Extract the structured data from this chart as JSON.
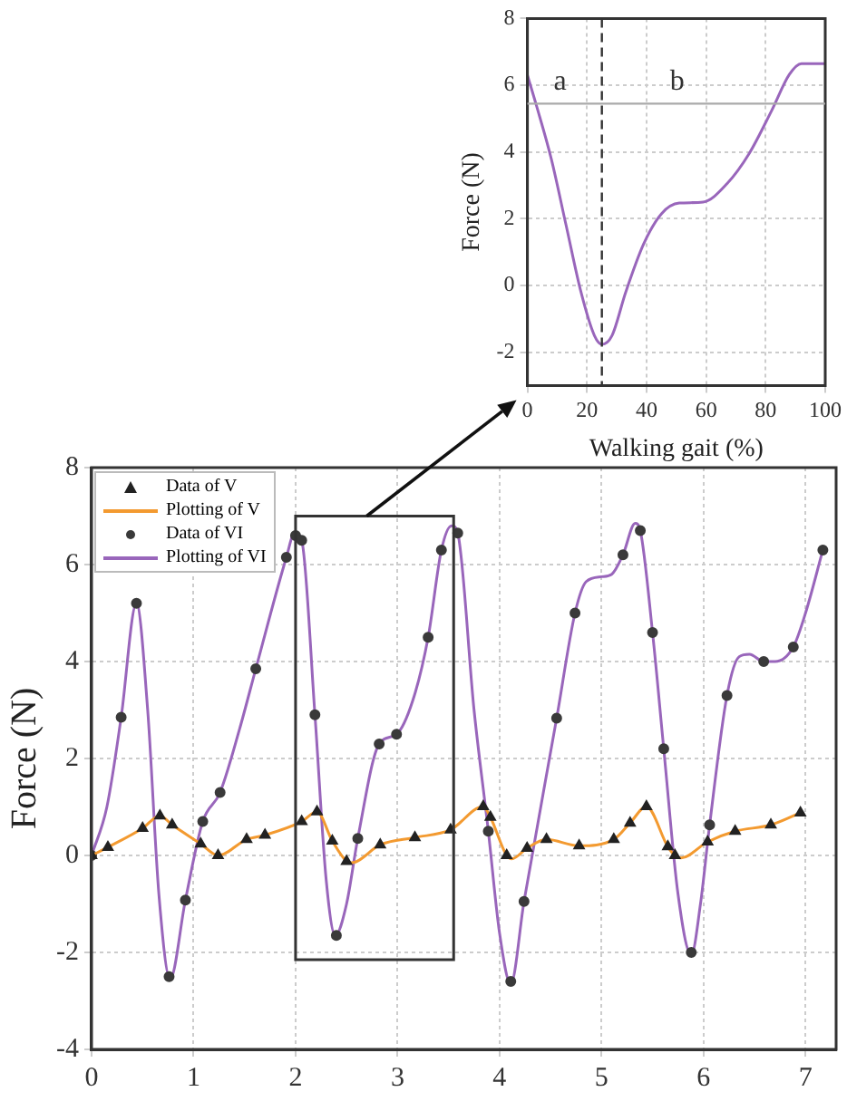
{
  "chart_data": [
    {
      "type": "line",
      "xlabel": "Walking gait (%)",
      "ylabel": "Force (N)",
      "xlim": [
        0,
        100
      ],
      "xticks": [
        0,
        20,
        40,
        60,
        80,
        100
      ],
      "ylim": [
        -3,
        8
      ],
      "yticks": [
        -2,
        0,
        2,
        4,
        6,
        8
      ],
      "grid": true,
      "legend": false,
      "marker": "none",
      "line_style": "solid",
      "x": [
        0,
        3,
        8,
        13,
        18,
        22.5,
        25,
        28.4,
        33,
        39,
        45,
        51,
        59,
        67,
        74.5,
        82,
        88,
        92,
        98,
        100
      ],
      "series": [
        {
          "color": "#9966bb",
          "values": [
            6.3,
            5.4,
            3.8,
            1.8,
            -0.2,
            -1.5,
            -1.76,
            -1.5,
            -0.2,
            1.24,
            2.15,
            2.47,
            2.5,
            3.05,
            3.96,
            5.24,
            6.33,
            6.65,
            6.65,
            6.65
          ]
        }
      ],
      "ref_lines": [
        {
          "axis": "x",
          "value": 25,
          "line_style": "dashed",
          "color": "#333333"
        },
        {
          "axis": "y",
          "value": 5.45,
          "line_style": "solid",
          "color": "#aaaaaa"
        }
      ],
      "annotations": [
        "a",
        "b"
      ]
    },
    {
      "type": "line",
      "ylabel": "Force (N)",
      "xlim": [
        0,
        7.3
      ],
      "xticks": [
        0,
        1,
        2,
        3,
        4,
        5,
        6,
        7
      ],
      "ylim": [
        -4,
        8
      ],
      "yticks": [
        -4,
        -2,
        0,
        2,
        4,
        6,
        8
      ],
      "grid": true,
      "legend": "top left",
      "series": [
        {
          "name": "Data of V",
          "type": "scatter",
          "marker": "triangle",
          "color": "#222222",
          "x": [
            0,
            0.16,
            0.5,
            0.67,
            0.79,
            1.07,
            1.24,
            1.52,
            1.7,
            2.06,
            2.21,
            2.36,
            2.5,
            2.83,
            3.17,
            3.52,
            3.84,
            3.91,
            4.07,
            4.27,
            4.46,
            4.78,
            5.12,
            5.28,
            5.44,
            5.65,
            5.72,
            6.04,
            6.31,
            6.66,
            6.95
          ],
          "values": [
            0,
            0.17,
            0.56,
            0.82,
            0.63,
            0.24,
            0,
            0.33,
            0.42,
            0.7,
            0.9,
            0.3,
            -0.12,
            0.22,
            0.37,
            0.53,
            1.01,
            0.79,
            0,
            0.15,
            0.33,
            0.2,
            0.33,
            0.67,
            1.01,
            0.18,
            0,
            0.28,
            0.5,
            0.63,
            0.88
          ]
        },
        {
          "name": "Plotting of V",
          "type": "line",
          "marker": "none",
          "line_style": "solid",
          "color": "#f39a30",
          "x": [
            0,
            0.16,
            0.5,
            0.67,
            0.79,
            1.07,
            1.24,
            1.52,
            1.7,
            2.06,
            2.21,
            2.36,
            2.5,
            2.55,
            2.83,
            3.17,
            3.52,
            3.84,
            3.91,
            4.07,
            4.12,
            4.27,
            4.46,
            4.78,
            5.12,
            5.28,
            5.44,
            5.65,
            5.72,
            5.78,
            6.04,
            6.31,
            6.66,
            6.95
          ],
          "values": [
            0,
            0.17,
            0.56,
            0.82,
            0.63,
            0.24,
            0,
            0.33,
            0.42,
            0.7,
            0.9,
            0.3,
            -0.12,
            -0.15,
            0.22,
            0.37,
            0.53,
            1.01,
            0.79,
            0,
            -0.07,
            0.15,
            0.33,
            0.2,
            0.33,
            0.67,
            1.01,
            0.18,
            0,
            -0.05,
            0.28,
            0.5,
            0.63,
            0.88
          ]
        },
        {
          "name": "Data of VI",
          "type": "scatter",
          "marker": "circle",
          "color": "#3a3a3a",
          "x": [
            0,
            0.29,
            0.44,
            0.76,
            0.92,
            1.09,
            1.26,
            1.61,
            1.91,
            2.0,
            2.06,
            2.19,
            2.4,
            2.61,
            2.82,
            2.99,
            3.3,
            3.43,
            3.59,
            3.89,
            4.11,
            4.24,
            4.56,
            4.74,
            5.21,
            5.38,
            5.5,
            5.61,
            5.88,
            6.06,
            6.23,
            6.59,
            6.88,
            7.17
          ],
          "values": [
            0,
            2.85,
            5.2,
            -2.5,
            -0.92,
            0.7,
            1.3,
            3.85,
            6.15,
            6.6,
            6.5,
            2.9,
            -1.65,
            0.35,
            2.3,
            2.5,
            4.5,
            6.3,
            6.65,
            0.5,
            -2.6,
            -0.95,
            2.83,
            5.0,
            6.2,
            6.7,
            4.6,
            2.2,
            -2.0,
            0.63,
            3.3,
            4.0,
            4.3,
            6.3
          ]
        },
        {
          "name": "Plotting of VI",
          "type": "line",
          "marker": "none",
          "line_style": "solid",
          "color": "#9966bb",
          "x": [
            0,
            0.15,
            0.29,
            0.44,
            0.55,
            0.66,
            0.77,
            0.92,
            1.09,
            1.26,
            1.45,
            1.61,
            1.91,
            1.99,
            2.06,
            2.19,
            2.3,
            2.39,
            2.5,
            2.61,
            2.82,
            2.99,
            3.15,
            3.3,
            3.43,
            3.53,
            3.59,
            3.75,
            3.89,
            4.0,
            4.11,
            4.24,
            4.56,
            4.74,
            4.85,
            5.0,
            5.1,
            5.21,
            5.33,
            5.38,
            5.5,
            5.61,
            5.75,
            5.88,
            5.97,
            6.06,
            6.23,
            6.35,
            6.45,
            6.59,
            6.7,
            6.88,
            7.0,
            7.17
          ],
          "values": [
            0,
            1.0,
            2.85,
            5.2,
            3.0,
            -0.8,
            -2.55,
            -0.92,
            0.7,
            1.3,
            2.6,
            3.85,
            6.15,
            6.65,
            6.5,
            2.9,
            -0.5,
            -1.65,
            -1.0,
            0.35,
            2.3,
            2.5,
            3.2,
            4.5,
            6.3,
            6.8,
            6.65,
            3.0,
            0.5,
            -1.6,
            -2.65,
            -0.95,
            2.83,
            5.0,
            5.65,
            5.75,
            5.8,
            6.2,
            6.85,
            6.7,
            4.6,
            2.2,
            -0.8,
            -2.05,
            -1.0,
            0.63,
            3.3,
            4.1,
            4.15,
            4.0,
            4.0,
            4.3,
            5.0,
            6.3
          ]
        }
      ]
    }
  ]
}
